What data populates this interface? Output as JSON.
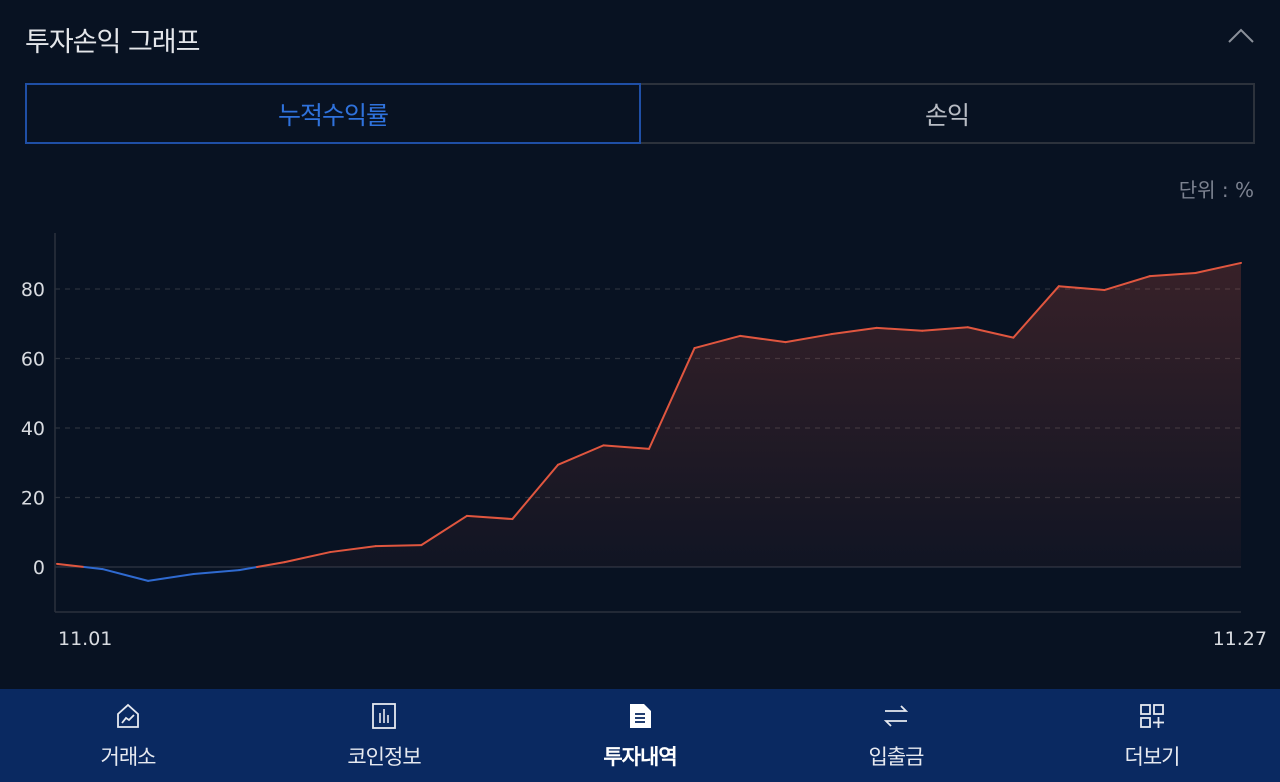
{
  "header": {
    "title": "투자손익 그래프",
    "collapse_icon": "chevron-up-icon"
  },
  "tabs": [
    {
      "label": "누적수익률",
      "active": true
    },
    {
      "label": "손익",
      "active": false
    }
  ],
  "unit_label": "단위 : %",
  "colors": {
    "background": "#081222",
    "positive": "#e0563f",
    "negative": "#2f6ad0",
    "accent": "#2f72dc",
    "nav": "#0a2961"
  },
  "chart_data": {
    "type": "area",
    "title": "",
    "xlabel": "",
    "ylabel": "",
    "x_tick_labels": [
      "11.01",
      "11.27"
    ],
    "y_ticks": [
      0,
      20,
      40,
      60,
      80
    ],
    "y_tick_labels": [
      "0",
      "20",
      "40",
      "60",
      "80"
    ],
    "ylim": [
      -13,
      96
    ],
    "grid": true,
    "x": [
      "11.01",
      "11.02",
      "11.03",
      "11.04",
      "11.05",
      "11.06",
      "11.07",
      "11.08",
      "11.09",
      "11.10",
      "11.11",
      "11.12",
      "11.13",
      "11.14",
      "11.15",
      "11.16",
      "11.17",
      "11.18",
      "11.19",
      "11.20",
      "11.21",
      "11.22",
      "11.23",
      "11.24",
      "11.25",
      "11.26",
      "11.27"
    ],
    "values": [
      0.9,
      -0.6,
      -4,
      -2,
      -0.9,
      1.4,
      4.3,
      6,
      6.3,
      14.7,
      13.8,
      29.4,
      35,
      34,
      63,
      66.5,
      64.7,
      67,
      68.8,
      68,
      69,
      66,
      80.8,
      79.7,
      83.7,
      84.6,
      87.5
    ]
  },
  "nav": [
    {
      "label": "거래소",
      "icon": "exchange-chart-icon",
      "active": false
    },
    {
      "label": "코인정보",
      "icon": "bar-chart-icon",
      "active": false
    },
    {
      "label": "투자내역",
      "icon": "document-icon",
      "active": true
    },
    {
      "label": "입출금",
      "icon": "transfer-arrows-icon",
      "active": false
    },
    {
      "label": "더보기",
      "icon": "more-grid-icon",
      "active": false
    }
  ]
}
